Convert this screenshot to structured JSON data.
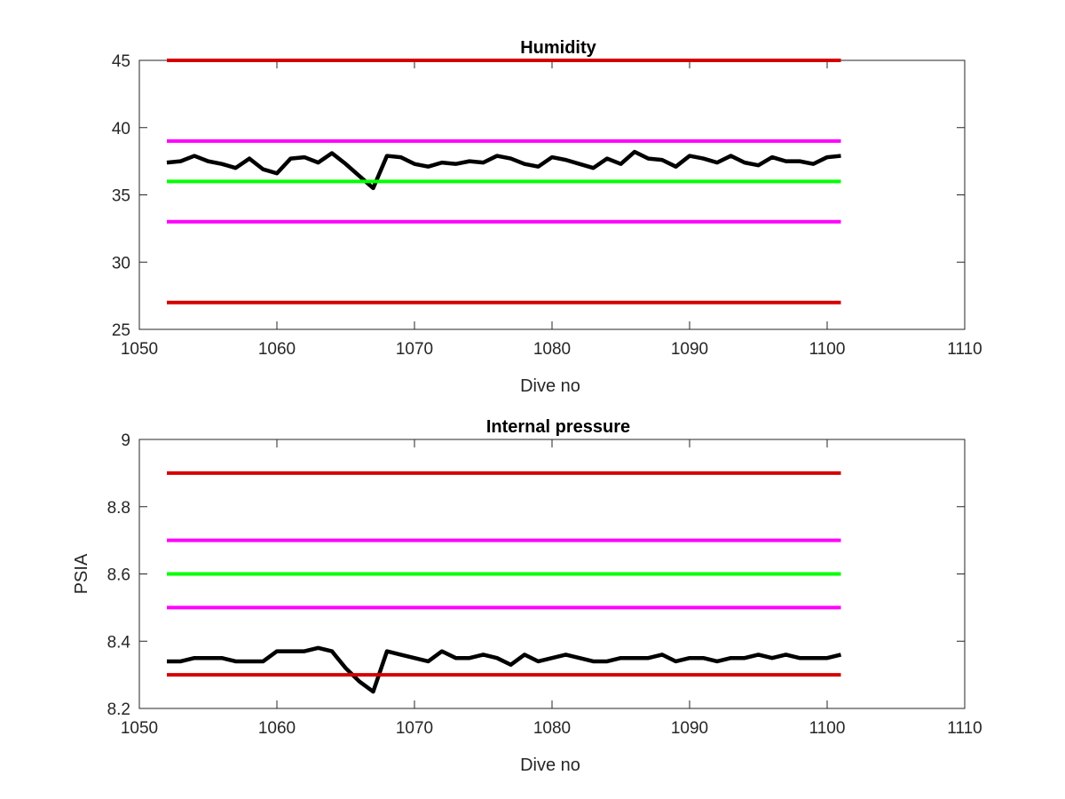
{
  "chart_data": [
    {
      "type": "line",
      "title": "Humidity",
      "xlabel": "Dive no",
      "ylabel": "",
      "xlim": [
        1050,
        1110
      ],
      "ylim": [
        25,
        45
      ],
      "xticks": [
        1050,
        1060,
        1070,
        1080,
        1090,
        1100,
        1110
      ],
      "yticks": [
        25,
        30,
        35,
        40,
        45
      ],
      "grid": false,
      "series": [
        {
          "color": "#000000",
          "x": [
            1052,
            1053,
            1054,
            1055,
            1056,
            1057,
            1058,
            1059,
            1060,
            1061,
            1062,
            1063,
            1064,
            1065,
            1066,
            1067,
            1068,
            1069,
            1070,
            1071,
            1072,
            1073,
            1074,
            1075,
            1076,
            1077,
            1078,
            1079,
            1080,
            1081,
            1082,
            1083,
            1084,
            1085,
            1086,
            1087,
            1088,
            1089,
            1090,
            1091,
            1092,
            1093,
            1094,
            1095,
            1096,
            1097,
            1098,
            1099,
            1100,
            1101
          ],
          "y": [
            37.4,
            37.5,
            37.9,
            37.5,
            37.3,
            37.0,
            37.7,
            36.9,
            36.6,
            37.7,
            37.8,
            37.4,
            38.1,
            37.3,
            36.4,
            35.5,
            37.9,
            37.8,
            37.3,
            37.1,
            37.4,
            37.3,
            37.5,
            37.4,
            37.9,
            37.7,
            37.3,
            37.1,
            37.8,
            37.6,
            37.3,
            37.0,
            37.7,
            37.3,
            38.2,
            37.7,
            37.6,
            37.1,
            37.9,
            37.7,
            37.4,
            37.9,
            37.4,
            37.2,
            37.8,
            37.5,
            37.5,
            37.3,
            37.8,
            37.9
          ]
        },
        {
          "color": "#d40000",
          "x": [
            1052,
            1101
          ],
          "y": [
            45,
            45
          ]
        },
        {
          "color": "#ff00ff",
          "x": [
            1052,
            1101
          ],
          "y": [
            39,
            39
          ]
        },
        {
          "color": "#00ff00",
          "x": [
            1052,
            1101
          ],
          "y": [
            36,
            36
          ]
        },
        {
          "color": "#ff00ff",
          "x": [
            1052,
            1101
          ],
          "y": [
            33,
            33
          ]
        },
        {
          "color": "#d40000",
          "x": [
            1052,
            1101
          ],
          "y": [
            27,
            27
          ]
        }
      ]
    },
    {
      "type": "line",
      "title": "Internal pressure",
      "xlabel": "Dive no",
      "ylabel": "PSIA",
      "xlim": [
        1050,
        1110
      ],
      "ylim": [
        8.2,
        9
      ],
      "xticks": [
        1050,
        1060,
        1070,
        1080,
        1090,
        1100,
        1110
      ],
      "yticks": [
        8.2,
        8.4,
        8.6,
        8.8,
        9
      ],
      "grid": false,
      "series": [
        {
          "color": "#000000",
          "x": [
            1052,
            1053,
            1054,
            1055,
            1056,
            1057,
            1058,
            1059,
            1060,
            1061,
            1062,
            1063,
            1064,
            1065,
            1066,
            1067,
            1068,
            1069,
            1070,
            1071,
            1072,
            1073,
            1074,
            1075,
            1076,
            1077,
            1078,
            1079,
            1080,
            1081,
            1082,
            1083,
            1084,
            1085,
            1086,
            1087,
            1088,
            1089,
            1090,
            1091,
            1092,
            1093,
            1094,
            1095,
            1096,
            1097,
            1098,
            1099,
            1100,
            1101
          ],
          "y": [
            8.34,
            8.34,
            8.35,
            8.35,
            8.35,
            8.34,
            8.34,
            8.34,
            8.37,
            8.37,
            8.37,
            8.38,
            8.37,
            8.32,
            8.28,
            8.25,
            8.37,
            8.36,
            8.35,
            8.34,
            8.37,
            8.35,
            8.35,
            8.36,
            8.35,
            8.33,
            8.36,
            8.34,
            8.35,
            8.36,
            8.35,
            8.34,
            8.34,
            8.35,
            8.35,
            8.35,
            8.36,
            8.34,
            8.35,
            8.35,
            8.34,
            8.35,
            8.35,
            8.36,
            8.35,
            8.36,
            8.35,
            8.35,
            8.35,
            8.36
          ]
        },
        {
          "color": "#d40000",
          "x": [
            1052,
            1101
          ],
          "y": [
            8.9,
            8.9
          ]
        },
        {
          "color": "#ff00ff",
          "x": [
            1052,
            1101
          ],
          "y": [
            8.7,
            8.7
          ]
        },
        {
          "color": "#00ff00",
          "x": [
            1052,
            1101
          ],
          "y": [
            8.6,
            8.6
          ]
        },
        {
          "color": "#ff00ff",
          "x": [
            1052,
            1101
          ],
          "y": [
            8.5,
            8.5
          ]
        },
        {
          "color": "#d40000",
          "x": [
            1052,
            1101
          ],
          "y": [
            8.3,
            8.3
          ]
        }
      ]
    }
  ]
}
